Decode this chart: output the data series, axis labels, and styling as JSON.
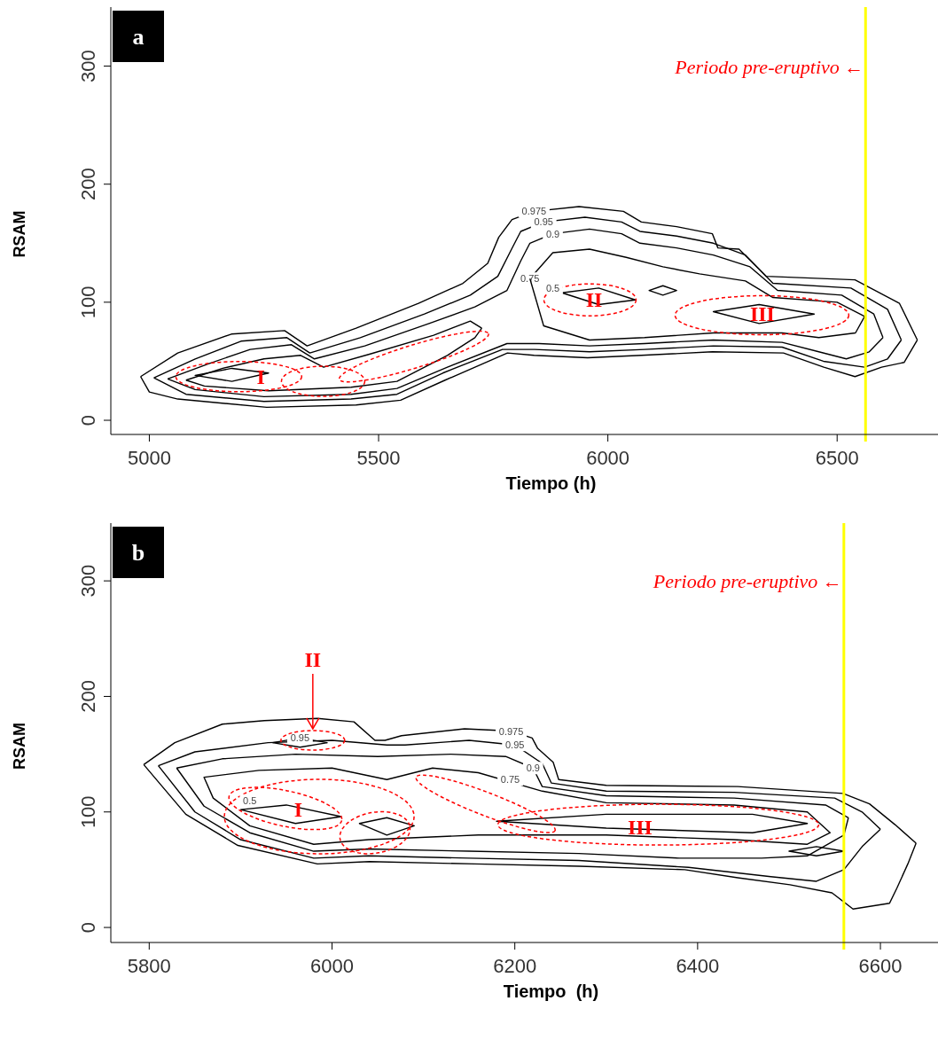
{
  "chart_data": [
    {
      "type": "line",
      "title": "a",
      "xlabel": "Tiempo (h)",
      "ylabel": "RSAM",
      "xlim": [
        4916,
        6720
      ],
      "ylim": [
        -12,
        350
      ],
      "xticks": [
        5000,
        5500,
        6000,
        6500
      ],
      "yticks": [
        0,
        100,
        200,
        300
      ],
      "grid": false,
      "marker": "none",
      "line_style": "solid",
      "series": [
        {
          "name": "0.975",
          "color": "#000000",
          "x": [
            4981,
            5062,
            5179,
            5295,
            5344,
            5451,
            5587,
            5684,
            5738,
            5762,
            5791,
            5839,
            5937,
            6034,
            6073,
            6150,
            6228,
            6240,
            6286,
            6345,
            6539,
            6636,
            6675
          ],
          "values": [
            37,
            57,
            73,
            76,
            63,
            78,
            99,
            116,
            133,
            155,
            170,
            177,
            181,
            177,
            168,
            164,
            158,
            146,
            145,
            122,
            119,
            99,
            68
          ]
        },
        {
          "color": "#000000",
          "x": [
            4981,
            5000,
            5062,
            5256,
            5451,
            5548,
            5645,
            5781,
            5839,
            5956,
            6073,
            6228,
            6383,
            6471,
            6539,
            6597,
            6646,
            6675
          ],
          "values": [
            37,
            24,
            18,
            11,
            13,
            17,
            34,
            57,
            55,
            53,
            55,
            58,
            57,
            45,
            37,
            45,
            49,
            68
          ]
        },
        {
          "name": "0.95",
          "color": "#000000",
          "x": [
            5010,
            5100,
            5200,
            5300,
            5350,
            5460,
            5600,
            5700,
            5760,
            5790,
            5810,
            5860,
            5950,
            6030,
            6070,
            6150,
            6230,
            6300,
            6360,
            6530,
            6610,
            6640
          ],
          "values": [
            36,
            52,
            67,
            70,
            57,
            70,
            90,
            106,
            122,
            145,
            160,
            168,
            172,
            168,
            160,
            156,
            150,
            140,
            116,
            112,
            94,
            68
          ]
        },
        {
          "color": "#000000",
          "x": [
            5010,
            5080,
            5250,
            5440,
            5540,
            5640,
            5770,
            5840,
            5960,
            6080,
            6230,
            6380,
            6470,
            6560,
            6610,
            6640
          ],
          "values": [
            36,
            22,
            16,
            18,
            22,
            40,
            60,
            60,
            58,
            60,
            63,
            62,
            50,
            45,
            52,
            68
          ]
        },
        {
          "name": "0.9",
          "color": "#000000",
          "x": [
            5040,
            5130,
            5220,
            5310,
            5360,
            5470,
            5610,
            5710,
            5780,
            5810,
            5830,
            5880,
            5960,
            6030,
            6070,
            6150,
            6230,
            6310,
            6370,
            6510,
            6580,
            6600
          ],
          "values": [
            35,
            48,
            60,
            64,
            52,
            63,
            82,
            96,
            110,
            135,
            150,
            158,
            162,
            158,
            150,
            146,
            140,
            130,
            110,
            106,
            90,
            70
          ]
        },
        {
          "color": "#000000",
          "x": [
            5040,
            5100,
            5250,
            5440,
            5540,
            5650,
            5780,
            5850,
            5960,
            6080,
            6230,
            6380,
            6460,
            6520,
            6570,
            6600
          ],
          "values": [
            35,
            26,
            20,
            22,
            27,
            45,
            65,
            65,
            63,
            65,
            68,
            66,
            58,
            52,
            58,
            70
          ]
        },
        {
          "name": "0.75",
          "color": "#000000",
          "x": [
            5080,
            5160,
            5250,
            5330,
            5380,
            5480,
            5620,
            5700,
            5725,
            null,
            5830,
            5880,
            5960,
            6040,
            6120,
            6200,
            6300,
            6360,
            6500,
            6560
          ],
          "values": [
            34,
            44,
            52,
            55,
            45,
            56,
            72,
            84,
            78,
            null,
            120,
            142,
            145,
            138,
            130,
            124,
            118,
            104,
            100,
            88
          ]
        },
        {
          "color": "#000000",
          "x": [
            5080,
            5120,
            5260,
            5440,
            5540,
            5650,
            5710,
            5725,
            null,
            5830,
            5860,
            5960,
            6080,
            6230,
            6380,
            6460,
            6540,
            6560
          ],
          "values": [
            34,
            29,
            25,
            28,
            33,
            55,
            70,
            78,
            null,
            120,
            80,
            68,
            70,
            74,
            74,
            70,
            74,
            88
          ]
        }
      ],
      "ref_lines": [
        {
          "axis": "x",
          "value": 6562,
          "label": "Periodo pre-eruptivo ←",
          "color": "#ffff00"
        }
      ],
      "annotations": [
        "I",
        "II",
        "III",
        "0.5"
      ]
    },
    {
      "type": "line",
      "title": "b",
      "xlabel": "Tiempo  (h)",
      "ylabel": "RSAM",
      "xlim": [
        5758,
        6663
      ],
      "ylim": [
        -13,
        350
      ],
      "xticks": [
        5800,
        6000,
        6200,
        6400,
        6600
      ],
      "yticks": [
        0,
        100,
        200,
        300
      ],
      "grid": false,
      "marker": "none",
      "line_style": "solid",
      "series": [
        {
          "name": "0.975",
          "color": "#000000",
          "x": [
            5794,
            5828,
            5880,
            5926,
            5984,
            6024,
            6047,
            6058,
            6076,
            6145,
            6196,
            6219,
            6225,
            6242,
            6248,
            6300,
            6444,
            6559,
            6588,
            6616,
            6639
          ],
          "values": [
            141,
            160,
            176,
            179,
            181,
            178,
            162,
            162,
            166,
            172,
            170,
            164,
            155,
            143,
            128,
            123,
            122,
            116,
            107,
            89,
            73
          ]
        },
        {
          "color": "#000000",
          "x": [
            5794,
            5840,
            5897,
            5984,
            6041,
            6156,
            6271,
            6386,
            6444,
            6501,
            6547,
            6570,
            6610,
            6618,
            6630,
            6639
          ],
          "values": [
            141,
            98,
            71,
            55,
            57,
            55,
            53,
            50,
            43,
            37,
            30,
            16,
            21,
            34,
            55,
            73
          ]
        },
        {
          "name": "0.95",
          "color": "#000000",
          "x": [
            5810,
            5850,
            5930,
            6000,
            6060,
            6080,
            6150,
            6200,
            6230,
            6240,
            6300,
            6440,
            6550,
            6580,
            6600
          ],
          "values": [
            140,
            152,
            160,
            162,
            158,
            158,
            162,
            158,
            142,
            125,
            118,
            117,
            112,
            100,
            85
          ]
        },
        {
          "color": "#000000",
          "x": [
            5810,
            5850,
            5900,
            5980,
            6040,
            6150,
            6270,
            6390,
            6480,
            6530,
            6560,
            6580,
            6600
          ],
          "values": [
            140,
            100,
            76,
            60,
            62,
            60,
            58,
            52,
            44,
            40,
            50,
            70,
            85
          ]
        },
        {
          "name": "0.95",
          "color": "#000000",
          "x": [
            5935,
            5965,
            5995
          ],
          "values": [
            160,
            164,
            160
          ]
        },
        {
          "color": "#000000",
          "x": [
            5935,
            5965,
            5995
          ],
          "values": [
            160,
            156,
            160
          ]
        },
        {
          "name": "0.9",
          "color": "#000000",
          "x": [
            5830,
            5880,
            5960,
            6050,
            6130,
            6190,
            6220,
            6230,
            6300,
            6440,
            6540,
            6565
          ],
          "values": [
            138,
            146,
            150,
            148,
            150,
            148,
            138,
            122,
            114,
            112,
            106,
            95
          ]
        },
        {
          "color": "#000000",
          "x": [
            5830,
            5860,
            5910,
            5980,
            6040,
            6150,
            6270,
            6380,
            6470,
            6520,
            6560,
            6565
          ],
          "values": [
            138,
            105,
            82,
            66,
            68,
            66,
            64,
            60,
            60,
            62,
            80,
            95
          ]
        }
      ],
      "ref_lines": [
        {
          "axis": "x",
          "value": 6560,
          "label": "Periodo pre-eruptivo ←",
          "color": "#ffff00"
        }
      ],
      "annotations": [
        {
          "text": "II",
          "x": 5979,
          "y": 172
        },
        "I",
        "III",
        "0.5",
        "0.75"
      ]
    }
  ]
}
